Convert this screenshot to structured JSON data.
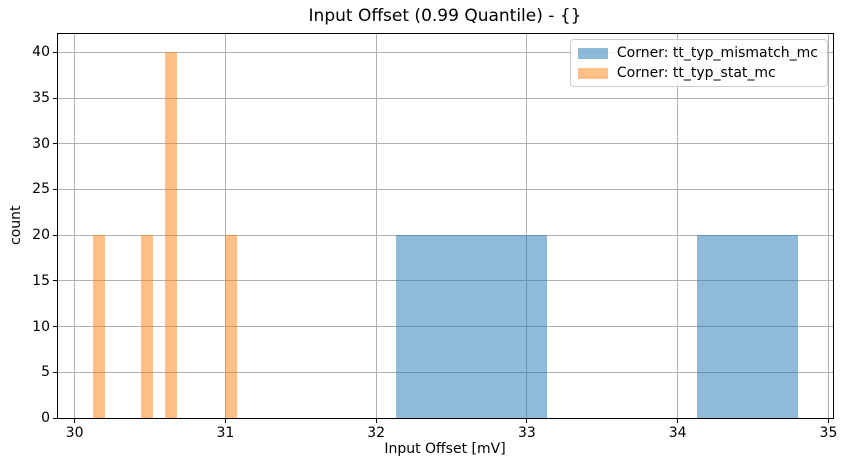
{
  "chart_data": {
    "type": "histogram",
    "title": "Input Offset (0.99 Quantile) - {}",
    "xlabel": "Input Offset [mV]",
    "ylabel": "count",
    "xlim": [
      29.89,
      35.03
    ],
    "ylim": [
      0,
      42
    ],
    "xticks": [
      30,
      31,
      32,
      33,
      34,
      35
    ],
    "yticks": [
      0,
      5,
      10,
      15,
      20,
      25,
      30,
      35,
      40
    ],
    "grid": true,
    "grid_color": "#b0b0b0",
    "background_color": "#ffffff",
    "spine_color": "#000000",
    "legend_position": "upper right",
    "series": [
      {
        "name": "Corner: tt_typ_mismatch_mc",
        "color": "#1f77b4",
        "alpha": 0.5,
        "bars": [
          {
            "x_start": 32.13,
            "x_end": 33.13,
            "count": 20
          },
          {
            "x_start": 34.13,
            "x_end": 34.8,
            "count": 20
          }
        ]
      },
      {
        "name": "Corner: tt_typ_stat_mc",
        "color": "#ff7f0e",
        "alpha": 0.5,
        "bars": [
          {
            "x_start": 30.12,
            "x_end": 30.2,
            "count": 20
          },
          {
            "x_start": 30.44,
            "x_end": 30.52,
            "count": 20
          },
          {
            "x_start": 30.6,
            "x_end": 30.68,
            "count": 40
          },
          {
            "x_start": 31.0,
            "x_end": 31.08,
            "count": 20
          }
        ]
      }
    ]
  }
}
